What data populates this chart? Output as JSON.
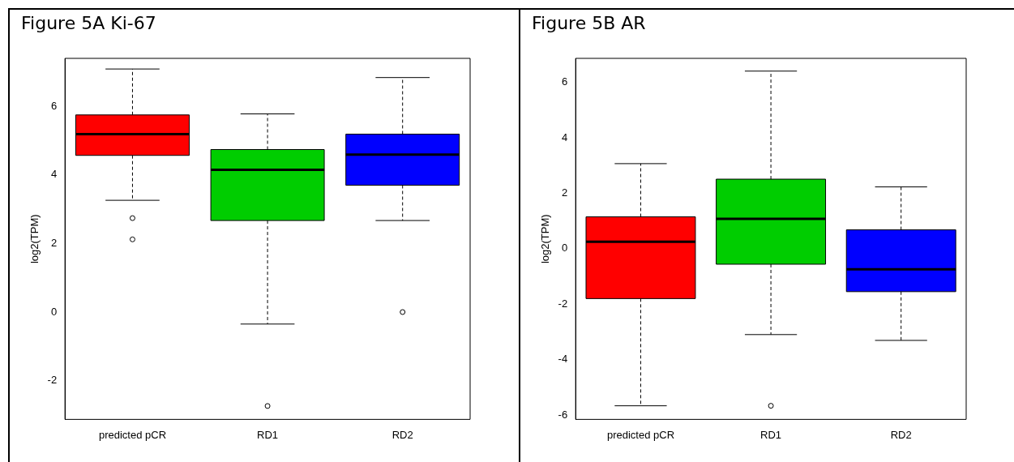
{
  "chart_data": [
    {
      "type": "box",
      "title": "Figure 5A Ki-67",
      "ylabel": "log2(TPM)",
      "categories": [
        "predicted pCR",
        "RD1",
        "RD2"
      ],
      "colors": [
        "#ff0000",
        "#00cd00",
        "#0000ff"
      ],
      "boxes": [
        {
          "low": 3.26,
          "q1": 4.57,
          "median": 5.19,
          "q3": 5.75,
          "high": 7.09,
          "outliers": [
            2.74,
            2.12
          ]
        },
        {
          "low": -0.35,
          "q1": 2.67,
          "median": 4.15,
          "q3": 4.74,
          "high": 5.78,
          "outliers": [
            -2.74
          ]
        },
        {
          "low": 2.67,
          "q1": 3.7,
          "median": 4.59,
          "q3": 5.19,
          "high": 6.84,
          "outliers": [
            0
          ]
        }
      ],
      "ylim": [
        -3.13,
        7.4
      ],
      "yticks": [
        -2,
        0,
        2,
        4,
        6
      ],
      "grid": false
    },
    {
      "type": "box",
      "title": "Figure 5B AR",
      "ylabel": "log2(TPM)",
      "categories": [
        "predicted pCR",
        "RD1",
        "RD2"
      ],
      "colors": [
        "#ff0000",
        "#00cd00",
        "#0000ff"
      ],
      "boxes": [
        {
          "low": -5.67,
          "q1": -1.8,
          "median": 0.25,
          "q3": 1.15,
          "high": 3.07
        },
        {
          "low": -3.1,
          "q1": -0.56,
          "median": 1.08,
          "q3": 2.51,
          "high": 6.41,
          "outliers": [
            -5.67
          ]
        },
        {
          "low": -3.31,
          "q1": -1.55,
          "median": -0.74,
          "q3": 0.68,
          "high": 2.23
        }
      ],
      "ylim": [
        -6.16,
        6.87
      ],
      "yticks": [
        -6,
        -4,
        -2,
        0,
        2,
        4,
        6
      ],
      "grid": false
    }
  ]
}
